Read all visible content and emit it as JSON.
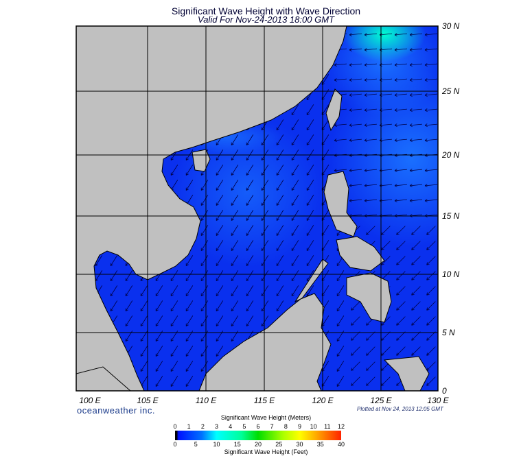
{
  "title": "Significant Wave Height with Wave Direction",
  "subtitle": "Valid For Nov-24-2013 18:00 GMT",
  "lon_labels": [
    "100 E",
    "105 E",
    "110 E",
    "115 E",
    "120 E",
    "125 E",
    "130 E"
  ],
  "lat_labels": [
    "30 N",
    "25 N",
    "20 N",
    "15 N",
    "10 N",
    "5 N",
    "0"
  ],
  "logo": "oceanweather inc.",
  "plotted": "Plotted at Nov 24, 2013 12:05 GMT",
  "colorbar": {
    "meters_label": "Significant Wave Height (Meters)",
    "feet_label": "Significant Wave Height (Feet)",
    "meters_ticks": [
      "0",
      "1",
      "2",
      "3",
      "4",
      "5",
      "6",
      "7",
      "8",
      "9",
      "10",
      "11",
      "12"
    ],
    "feet_ticks": [
      "0",
      "5",
      "10",
      "15",
      "20",
      "25",
      "30",
      "35",
      "40"
    ],
    "colors": [
      "#000000",
      "#0010ff",
      "#0070ff",
      "#00ffff",
      "#00dd00",
      "#ffff00",
      "#ffaa00",
      "#ff2200"
    ]
  },
  "colors": {
    "land": "#c0c0c0",
    "ocean_low": "#0a2ae8",
    "ocean_mid": "#1060ff",
    "ocean_high": "#00e0e0"
  }
}
